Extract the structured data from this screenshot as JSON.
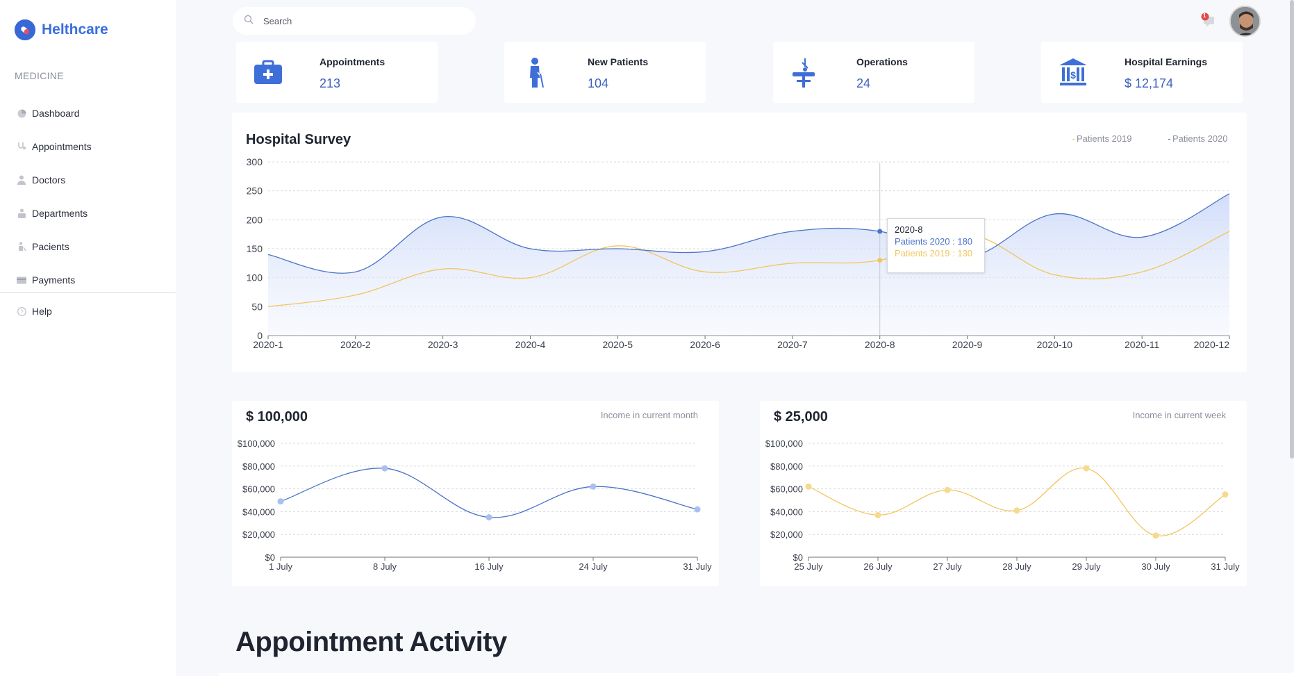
{
  "app": {
    "name": "Helthcare"
  },
  "sidebar": {
    "section_title": "MEDICINE",
    "items": [
      {
        "label": "Dashboard",
        "icon": "pie-chart-icon"
      },
      {
        "label": "Appointments",
        "icon": "stethoscope-icon"
      },
      {
        "label": "Doctors",
        "icon": "doctor-icon"
      },
      {
        "label": "Departments",
        "icon": "building-icon"
      },
      {
        "label": "Pacients",
        "icon": "patient-icon"
      },
      {
        "label": "Payments",
        "icon": "card-icon"
      }
    ],
    "help": {
      "label": "Help",
      "icon": "question-icon"
    }
  },
  "header": {
    "search_placeholder": "Search",
    "notification_count": "1"
  },
  "stats": [
    {
      "label": "Appointments",
      "value": "213",
      "icon": "medical-kit-icon"
    },
    {
      "label": "New Patients",
      "value": "104",
      "icon": "patient-with-cane-icon"
    },
    {
      "label": "Operations",
      "value": "24",
      "icon": "operating-table-icon"
    },
    {
      "label": "Hospital Earnings",
      "value": "$ 12,174",
      "icon": "bank-icon"
    }
  ],
  "survey": {
    "title": "Hospital Survey",
    "legend_2019": "Patients 2019",
    "legend_2020": "Patients 2020",
    "tooltip": {
      "title": "2020-8",
      "line_2020": "Patients 2020 : 180",
      "line_2019": "Patients 2019 : 130"
    }
  },
  "income_month": {
    "value": "$ 100,000",
    "label": "Income in current month"
  },
  "income_week": {
    "value": "$ 25,000",
    "label": "Income in current week"
  },
  "activity": {
    "title": "Appointment Activity"
  },
  "colors": {
    "blue": "#4a73c9",
    "yellow": "#f2c55c",
    "accent": "#3a6ee0"
  },
  "chart_data": [
    {
      "type": "area",
      "title": "Hospital Survey",
      "categories": [
        "2020-1",
        "2020-2",
        "2020-3",
        "2020-4",
        "2020-5",
        "2020-6",
        "2020-7",
        "2020-8",
        "2020-9",
        "2020-10",
        "2020-11",
        "2020-12"
      ],
      "series": [
        {
          "name": "Patients 2020",
          "values": [
            140,
            110,
            205,
            150,
            150,
            145,
            180,
            180,
            135,
            210,
            170,
            245
          ]
        },
        {
          "name": "Patients 2019",
          "values": [
            50,
            70,
            115,
            100,
            155,
            110,
            125,
            130,
            175,
            105,
            110,
            180
          ]
        }
      ],
      "ylim": [
        0,
        300
      ],
      "yticks": [
        "300",
        "250",
        "200",
        "150",
        "100",
        "50",
        "0"
      ],
      "legend": "top-right"
    },
    {
      "type": "line",
      "title": "$ 100,000",
      "categories": [
        "1 July",
        "8 July",
        "16 July",
        "24 July",
        "31 July"
      ],
      "values": [
        49000,
        78000,
        35000,
        62000,
        42000
      ],
      "ylim": [
        0,
        100000
      ],
      "yticks": [
        "$100,000",
        "$80,000",
        "$60,000",
        "$40,000",
        "$20,000",
        "$0"
      ]
    },
    {
      "type": "line",
      "title": "$ 25,000",
      "categories": [
        "25 July",
        "26 July",
        "27 July",
        "28 July",
        "29 July",
        "30 July",
        "31 July"
      ],
      "values": [
        62000,
        37000,
        59000,
        41000,
        78000,
        19000,
        55000
      ],
      "ylim": [
        0,
        100000
      ],
      "yticks": [
        "$100,000",
        "$80,000",
        "$60,000",
        "$40,000",
        "$20,000",
        "$0"
      ]
    }
  ]
}
